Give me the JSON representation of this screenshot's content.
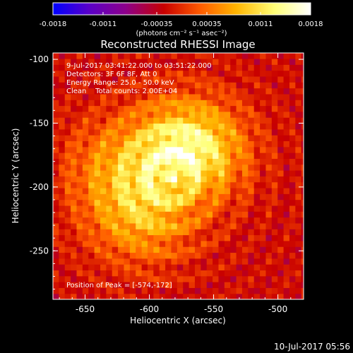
{
  "colorbar": {
    "tick_labels": [
      "-0.0018",
      "-0.0011",
      "-0.00035",
      "0.00035",
      "0.0011",
      "0.0018"
    ],
    "tick_values": [
      -0.0018,
      -0.0011,
      -0.00035,
      0.00035,
      0.0011,
      0.0018
    ],
    "range": [
      -0.0018,
      0.0018
    ],
    "unit_label": "(photons cm⁻² s⁻¹ asec⁻²)",
    "colors": [
      "#0000ff",
      "#5a00c8",
      "#8c008c",
      "#c80000",
      "#ff5a00",
      "#ffb400",
      "#ffff78",
      "#ffffff"
    ]
  },
  "chart_data": {
    "type": "heatmap",
    "title": "Reconstructed RHESSI Image",
    "xlabel": "Heliocentric X (arcsec)",
    "ylabel": "Heliocentric Y (arcsec)",
    "xlim": [
      -675,
      -480
    ],
    "ylim": [
      -288,
      -95
    ],
    "x_ticks": [
      -650,
      -600,
      -550,
      -500
    ],
    "y_ticks": [
      -100,
      -150,
      -200,
      -250
    ],
    "x_tick_labels": [
      "-650",
      "-600",
      "-550",
      "-500"
    ],
    "y_tick_labels": [
      "-100",
      "-150",
      "-200",
      "-250"
    ],
    "peak": [
      -574,
      -172
    ],
    "sources": [
      {
        "x": -572,
        "y": -172,
        "amplitude": 0.0016
      },
      {
        "x": -608,
        "y": -225,
        "amplitude": 0.0009
      },
      {
        "x": -630,
        "y": -185,
        "amplitude": 0.0006
      }
    ],
    "annotations": [
      "9-Jul-2017 03:41:22.000 to 03:51:22.000",
      "Detectors: 3F 6F 8F, Att 0",
      "Energy Range: 25.0 - 50.0 keV",
      "Clean    Total counts: 2.00E+04",
      "Position of Peak = [-574,-172]"
    ]
  },
  "footer": {
    "timestamp": "10-Jul-2017 05:56"
  }
}
